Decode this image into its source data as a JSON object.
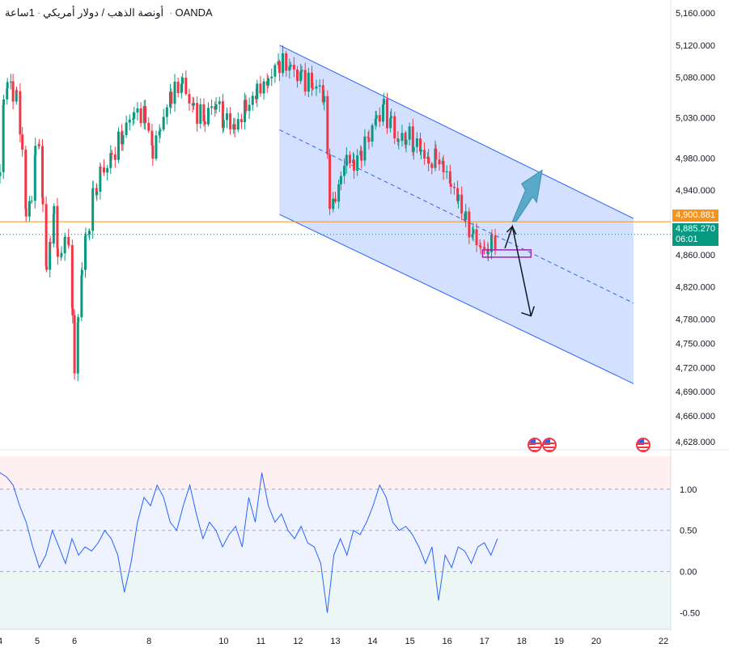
{
  "header": {
    "symbol": "أونصة الذهب / دولار أمريكي",
    "interval": "1ساعة",
    "broker": "OANDA"
  },
  "price_labels": {
    "level": "4,900.881",
    "current": "4,885.270",
    "countdown": "06:01"
  },
  "colors": {
    "bull": "#089981",
    "bear": "#f23645",
    "channel_fill": "#2962ff",
    "level_line": "#f7931a",
    "rsi_line": "#2962ff"
  },
  "chart_data": [
    {
      "type": "candlestick",
      "y_ticks": [
        "5,160.000",
        "5,120.000",
        "5,080.000",
        "5,030.000",
        "4,980.000",
        "4,940.000",
        "4,900.881",
        "4,885.270",
        "4,860.000",
        "4,820.000",
        "4,780.000",
        "4,750.000",
        "4,720.000",
        "4,690.000",
        "4,660.000",
        "4,628.000"
      ],
      "x_ticks": [
        "4",
        "5",
        "6",
        "8",
        "10",
        "11",
        "12",
        "13",
        "14",
        "15",
        "16",
        "17",
        "18",
        "19",
        "20",
        "22"
      ],
      "close_path": [
        [
          4.0,
          4960
        ],
        [
          4.1,
          5050
        ],
        [
          4.2,
          5080
        ],
        [
          4.35,
          5050
        ],
        [
          4.45,
          5060
        ],
        [
          4.6,
          4990
        ],
        [
          4.7,
          4910
        ],
        [
          4.85,
          4930
        ],
        [
          4.95,
          4990
        ],
        [
          5.05,
          5000
        ],
        [
          5.15,
          4920
        ],
        [
          5.25,
          4840
        ],
        [
          5.35,
          4880
        ],
        [
          5.45,
          4910
        ],
        [
          5.55,
          4870
        ],
        [
          5.65,
          4850
        ],
        [
          5.75,
          4890
        ],
        [
          5.85,
          4870
        ],
        [
          5.95,
          4780
        ],
        [
          6.0,
          4700
        ],
        [
          6.1,
          4790
        ],
        [
          6.2,
          4840
        ],
        [
          6.3,
          4880
        ],
        [
          6.4,
          4900
        ],
        [
          6.5,
          4930
        ],
        [
          6.6,
          4950
        ],
        [
          6.7,
          4960
        ],
        [
          7.0,
          4980
        ],
        [
          7.3,
          5010
        ],
        [
          7.6,
          5040
        ],
        [
          7.9,
          5030
        ],
        [
          8.1,
          4990
        ],
        [
          8.3,
          5020
        ],
        [
          8.6,
          5060
        ],
        [
          8.9,
          5070
        ],
        [
          9.2,
          5040
        ],
        [
          9.5,
          5030
        ],
        [
          9.8,
          5050
        ],
        [
          10.0,
          5030
        ],
        [
          10.3,
          5020
        ],
        [
          10.6,
          5040
        ],
        [
          10.9,
          5060
        ],
        [
          11.2,
          5080
        ],
        [
          11.5,
          5100
        ],
        [
          11.8,
          5090
        ],
        [
          12.1,
          5080
        ],
        [
          12.4,
          5070
        ],
        [
          12.7,
          5060
        ],
        [
          12.85,
          4920
        ],
        [
          13.0,
          4930
        ],
        [
          13.15,
          4960
        ],
        [
          13.3,
          4980
        ],
        [
          13.5,
          4970
        ],
        [
          13.7,
          4990
        ],
        [
          13.9,
          5010
        ],
        [
          14.1,
          5030
        ],
        [
          14.3,
          5040
        ],
        [
          14.5,
          5020
        ],
        [
          14.7,
          5000
        ],
        [
          14.9,
          5010
        ],
        [
          15.1,
          5000
        ],
        [
          15.3,
          4990
        ],
        [
          15.5,
          4970
        ],
        [
          15.7,
          4980
        ],
        [
          15.9,
          4970
        ],
        [
          16.1,
          4950
        ],
        [
          16.3,
          4930
        ],
        [
          16.5,
          4900
        ],
        [
          16.7,
          4880
        ],
        [
          16.9,
          4870
        ],
        [
          17.0,
          4860
        ],
        [
          17.1,
          4875
        ],
        [
          17.2,
          4870
        ],
        [
          17.35,
          4885
        ]
      ],
      "channel": {
        "upper": [
          [
            11.5,
            5120
          ],
          [
            21.0,
            4905
          ]
        ],
        "mid": [
          [
            11.5,
            5015
          ],
          [
            21.0,
            4800
          ]
        ],
        "lower": [
          [
            11.5,
            4910
          ],
          [
            21.0,
            4700
          ]
        ]
      },
      "level": 4900.881,
      "current": 4885.27,
      "ylim": [
        4628,
        5160
      ]
    },
    {
      "type": "line",
      "y_ticks": [
        "1.00",
        "0.50",
        "0.00",
        "-0.50"
      ],
      "values": [
        1.2,
        1.15,
        1.05,
        0.8,
        0.6,
        0.3,
        0.05,
        0.2,
        0.5,
        0.3,
        0.1,
        0.4,
        0.2,
        0.3,
        0.25,
        0.35,
        0.5,
        0.4,
        0.2,
        -0.25,
        0.1,
        0.6,
        0.9,
        0.8,
        1.05,
        0.9,
        0.6,
        0.5,
        0.8,
        1.05,
        0.7,
        0.4,
        0.6,
        0.5,
        0.3,
        0.45,
        0.55,
        0.3,
        0.9,
        0.6,
        1.2,
        0.8,
        0.6,
        0.7,
        0.5,
        0.4,
        0.55,
        0.35,
        0.3,
        0.1,
        -0.5,
        0.2,
        0.4,
        0.2,
        0.5,
        0.45,
        0.6,
        0.8,
        1.05,
        0.9,
        0.6,
        0.5,
        0.55,
        0.45,
        0.3,
        0.1,
        0.3,
        -0.35,
        0.2,
        0.05,
        0.3,
        0.25,
        0.1,
        0.3,
        0.35,
        0.2,
        0.4
      ],
      "ylim": [
        -0.7,
        1.4
      ]
    }
  ]
}
